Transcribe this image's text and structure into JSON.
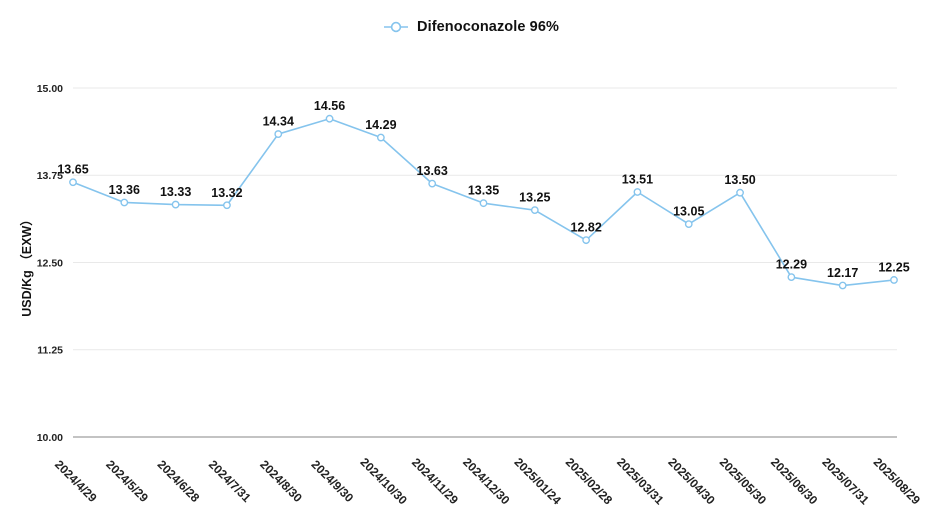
{
  "legend": {
    "label": "Difenoconazole 96%"
  },
  "colors": {
    "series": "#85c4ed",
    "marker_fill": "#ffffff",
    "grid": "#e9e9e9",
    "axis_line": "#c3c3c3",
    "point_label": "#111111",
    "tick_label": "#222222",
    "axis_title": "#111111"
  },
  "chart_data": {
    "type": "line",
    "title": "Difenoconazole 96%",
    "xlabel": "",
    "ylabel": "USD/Kg （EXW）",
    "ylim": [
      10,
      15
    ],
    "grid": true,
    "legend_position": "top-center",
    "y_ticks": [
      {
        "value": 15.0,
        "label": "15.00"
      },
      {
        "value": 13.75,
        "label": "13.75"
      },
      {
        "value": 12.5,
        "label": "12.50"
      },
      {
        "value": 11.25,
        "label": "11.25"
      },
      {
        "value": 10.0,
        "label": "10.00"
      }
    ],
    "categories": [
      "2024/4/29",
      "2024/5/29",
      "2024/6/28",
      "2024/7/31",
      "2024/8/30",
      "2024/9/30",
      "2024/10/30",
      "2024/11/29",
      "2024/12/30",
      "2025/01/24",
      "2025/02/28",
      "2025/03/31",
      "2025/04/30",
      "2025/05/30",
      "2025/06/30",
      "2025/07/31",
      "2025/08/29"
    ],
    "series": [
      {
        "name": "Difenoconazole 96%",
        "values": [
          13.65,
          13.36,
          13.33,
          13.32,
          14.34,
          14.56,
          14.29,
          13.63,
          13.35,
          13.25,
          12.82,
          13.51,
          13.05,
          13.5,
          12.29,
          12.17,
          12.25
        ],
        "point_labels": [
          "13.65",
          "13.36",
          "13.33",
          "13.32",
          "14.34",
          "14.56",
          "14.29",
          "13.63",
          "13.35",
          "13.25",
          "12.82",
          "13.51",
          "13.05",
          "13.50",
          "12.29",
          "12.17",
          "12.25"
        ]
      }
    ]
  }
}
